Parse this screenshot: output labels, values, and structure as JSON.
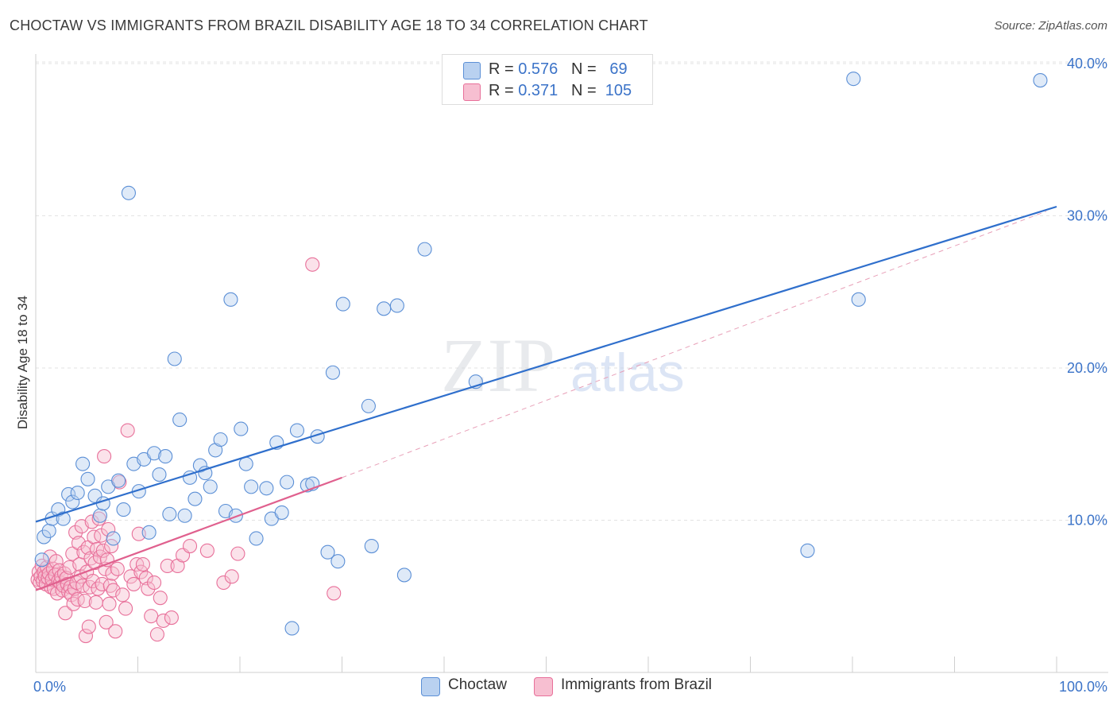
{
  "title": "CHOCTAW VS IMMIGRANTS FROM BRAZIL DISABILITY AGE 18 TO 34 CORRELATION CHART",
  "source": "Source: ZipAtlas.com",
  "watermark": {
    "zip": "ZIP",
    "atlas": "atlas"
  },
  "legend": {
    "r_label": "R =",
    "n_label": "N =",
    "series": [
      {
        "name": "Choctaw",
        "r": "0.576",
        "n": "69",
        "color": "#5b8fd6",
        "fill": "#b9d1f0"
      },
      {
        "name": "Immigrants from Brazil",
        "r": "0.371",
        "n": "105",
        "color": "#e8709a",
        "fill": "#f7bfd1"
      }
    ]
  },
  "chart_data": {
    "type": "scatter",
    "title": "CHOCTAW VS IMMIGRANTS FROM BRAZIL DISABILITY AGE 18 TO 34 CORRELATION CHART",
    "xlabel": "",
    "ylabel": "Disability Age 18 to 34",
    "xlim": [
      0,
      100
    ],
    "ylim": [
      0,
      42
    ],
    "x_tick_labels": [
      {
        "value": 0,
        "label": "0.0%"
      },
      {
        "value": 100,
        "label": "100.0%"
      }
    ],
    "y_tick_labels": [
      {
        "value": 10,
        "label": "10.0%"
      },
      {
        "value": 20,
        "label": "20.0%"
      },
      {
        "value": 30,
        "label": "30.0%"
      },
      {
        "value": 40,
        "label": "40.0%"
      }
    ],
    "series": [
      {
        "name": "Choctaw",
        "color": "#5b8fd6",
        "trend": {
          "x": [
            0,
            100
          ],
          "y": [
            9.9,
            30.6
          ]
        },
        "points": [
          [
            0.6,
            7.4
          ],
          [
            0.8,
            8.9
          ],
          [
            1.3,
            9.3
          ],
          [
            1.6,
            10.1
          ],
          [
            2.2,
            10.7
          ],
          [
            2.7,
            10.1
          ],
          [
            3.2,
            11.7
          ],
          [
            3.6,
            11.2
          ],
          [
            4.1,
            11.8
          ],
          [
            4.6,
            13.7
          ],
          [
            5.1,
            12.7
          ],
          [
            5.8,
            11.6
          ],
          [
            6.3,
            10.3
          ],
          [
            6.6,
            11.1
          ],
          [
            7.1,
            12.2
          ],
          [
            7.6,
            8.8
          ],
          [
            8.1,
            12.6
          ],
          [
            8.6,
            10.7
          ],
          [
            9.1,
            31.5
          ],
          [
            9.6,
            13.7
          ],
          [
            10.1,
            11.9
          ],
          [
            10.6,
            14.0
          ],
          [
            11.1,
            9.2
          ],
          [
            11.6,
            14.4
          ],
          [
            12.1,
            13.0
          ],
          [
            12.7,
            14.2
          ],
          [
            13.1,
            10.4
          ],
          [
            13.6,
            20.6
          ],
          [
            14.1,
            16.6
          ],
          [
            14.6,
            10.3
          ],
          [
            15.1,
            12.8
          ],
          [
            15.6,
            11.4
          ],
          [
            16.1,
            13.6
          ],
          [
            16.6,
            13.1
          ],
          [
            17.1,
            12.2
          ],
          [
            17.6,
            14.6
          ],
          [
            18.1,
            15.3
          ],
          [
            18.6,
            10.6
          ],
          [
            19.1,
            24.5
          ],
          [
            19.6,
            10.3
          ],
          [
            20.1,
            16.0
          ],
          [
            20.6,
            13.7
          ],
          [
            21.1,
            12.2
          ],
          [
            21.6,
            8.8
          ],
          [
            22.6,
            12.1
          ],
          [
            23.1,
            10.1
          ],
          [
            23.6,
            15.1
          ],
          [
            24.1,
            10.5
          ],
          [
            24.6,
            12.5
          ],
          [
            25.1,
            2.9
          ],
          [
            25.6,
            15.9
          ],
          [
            26.6,
            12.3
          ],
          [
            27.1,
            12.4
          ],
          [
            27.6,
            15.5
          ],
          [
            28.6,
            7.9
          ],
          [
            29.1,
            19.7
          ],
          [
            29.6,
            7.3
          ],
          [
            30.1,
            24.2
          ],
          [
            32.6,
            17.5
          ],
          [
            32.9,
            8.3
          ],
          [
            34.1,
            23.9
          ],
          [
            35.4,
            24.1
          ],
          [
            36.1,
            6.4
          ],
          [
            38.1,
            27.8
          ],
          [
            43.1,
            19.1
          ],
          [
            75.6,
            8.0
          ],
          [
            80.1,
            39.0
          ],
          [
            80.6,
            24.5
          ],
          [
            98.4,
            38.9
          ]
        ]
      },
      {
        "name": "Immigrants from Brazil",
        "color": "#e8709a",
        "trend": {
          "x": [
            0,
            30
          ],
          "y": [
            5.4,
            12.8
          ]
        },
        "points": [
          [
            0.2,
            6.1
          ],
          [
            0.3,
            6.6
          ],
          [
            0.4,
            5.9
          ],
          [
            0.5,
            6.3
          ],
          [
            0.6,
            7.0
          ],
          [
            0.7,
            6.0
          ],
          [
            0.8,
            6.6
          ],
          [
            0.9,
            6.3
          ],
          [
            1.0,
            5.8
          ],
          [
            1.1,
            6.9
          ],
          [
            1.2,
            6.2
          ],
          [
            1.3,
            6.5
          ],
          [
            1.4,
            7.6
          ],
          [
            1.5,
            5.6
          ],
          [
            1.6,
            6.1
          ],
          [
            1.7,
            6.8
          ],
          [
            1.8,
            5.5
          ],
          [
            1.9,
            6.4
          ],
          [
            2.0,
            7.3
          ],
          [
            2.1,
            5.2
          ],
          [
            2.2,
            6.0
          ],
          [
            2.3,
            6.7
          ],
          [
            2.4,
            5.9
          ],
          [
            2.5,
            6.3
          ],
          [
            2.6,
            5.4
          ],
          [
            2.7,
            5.7
          ],
          [
            2.8,
            6.5
          ],
          [
            2.9,
            3.9
          ],
          [
            3.0,
            6.2
          ],
          [
            3.1,
            5.8
          ],
          [
            3.2,
            5.3
          ],
          [
            3.3,
            6.9
          ],
          [
            3.4,
            5.6
          ],
          [
            3.5,
            5.1
          ],
          [
            3.6,
            7.8
          ],
          [
            3.7,
            4.5
          ],
          [
            3.8,
            5.5
          ],
          [
            3.9,
            9.2
          ],
          [
            4.0,
            5.9
          ],
          [
            4.1,
            4.8
          ],
          [
            4.2,
            8.5
          ],
          [
            4.3,
            7.1
          ],
          [
            4.4,
            6.3
          ],
          [
            4.5,
            9.6
          ],
          [
            4.6,
            5.7
          ],
          [
            4.7,
            7.9
          ],
          [
            4.8,
            4.7
          ],
          [
            4.9,
            2.4
          ],
          [
            5.0,
            6.6
          ],
          [
            5.1,
            8.2
          ],
          [
            5.2,
            3.0
          ],
          [
            5.3,
            5.6
          ],
          [
            5.4,
            7.5
          ],
          [
            5.5,
            9.9
          ],
          [
            5.6,
            6.0
          ],
          [
            5.7,
            8.9
          ],
          [
            5.8,
            7.2
          ],
          [
            5.9,
            4.6
          ],
          [
            6.0,
            8.1
          ],
          [
            6.1,
            5.5
          ],
          [
            6.2,
            10.1
          ],
          [
            6.3,
            7.6
          ],
          [
            6.4,
            9.0
          ],
          [
            6.5,
            5.8
          ],
          [
            6.6,
            8.0
          ],
          [
            6.7,
            14.2
          ],
          [
            6.8,
            6.8
          ],
          [
            6.9,
            3.3
          ],
          [
            7.0,
            7.4
          ],
          [
            7.1,
            9.4
          ],
          [
            7.2,
            4.5
          ],
          [
            7.3,
            5.7
          ],
          [
            7.4,
            8.3
          ],
          [
            7.5,
            6.5
          ],
          [
            7.6,
            5.4
          ],
          [
            7.8,
            2.7
          ],
          [
            8.0,
            6.8
          ],
          [
            8.2,
            12.5
          ],
          [
            8.5,
            5.1
          ],
          [
            8.8,
            4.2
          ],
          [
            9.0,
            15.9
          ],
          [
            9.3,
            6.3
          ],
          [
            9.6,
            5.8
          ],
          [
            9.9,
            7.1
          ],
          [
            10.1,
            9.1
          ],
          [
            10.3,
            6.6
          ],
          [
            10.5,
            7.1
          ],
          [
            10.8,
            6.2
          ],
          [
            11.0,
            5.5
          ],
          [
            11.3,
            3.7
          ],
          [
            11.6,
            5.9
          ],
          [
            11.9,
            2.5
          ],
          [
            12.2,
            4.9
          ],
          [
            12.5,
            3.4
          ],
          [
            12.9,
            7.0
          ],
          [
            13.3,
            3.6
          ],
          [
            13.9,
            7.0
          ],
          [
            14.4,
            7.7
          ],
          [
            15.1,
            8.3
          ],
          [
            16.8,
            8.0
          ],
          [
            18.4,
            5.9
          ],
          [
            19.2,
            6.3
          ],
          [
            19.8,
            7.8
          ],
          [
            27.1,
            26.8
          ],
          [
            29.2,
            5.2
          ]
        ]
      }
    ],
    "dashed_extension": {
      "x": [
        30,
        99
      ],
      "y": [
        12.8,
        30.3
      ]
    }
  }
}
